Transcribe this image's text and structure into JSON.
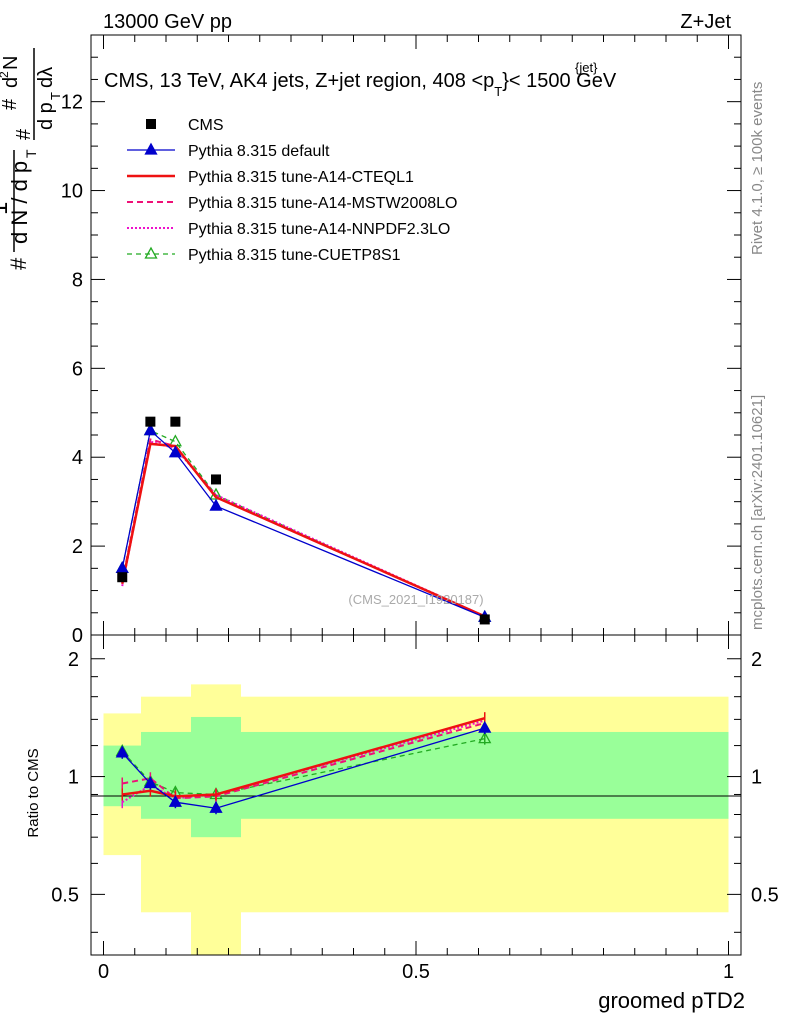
{
  "header": {
    "left": "13000 GeV pp",
    "right": "Z+Jet"
  },
  "side_labels": {
    "rivet": "Rivet 4.1.0, ≥ 100k events",
    "mcplots": "mcplots.cern.ch [arXiv:2401.10621]"
  },
  "watermark": "(CMS_2021_I1920187)",
  "colors": {
    "cms": "#000000",
    "default": "#0000cc",
    "cteql1": "#ee1111",
    "mstw": "#ee1177",
    "nnpdf": "#ee11cc",
    "cuetp": "#22aa22",
    "band_outer": "#ffff99",
    "band_inner": "#99ff99"
  },
  "chart_data": [
    {
      "type": "line",
      "panel": "main",
      "title": "CMS, 13 TeV, AK4 jets, Z+jet region, 408 <p_T^{jet}< 1500 GeV",
      "title_main": "CMS, 13 TeV, AK4 jets, Z+jet region, 408 <p",
      "title_sup": "{jet}",
      "title_sub": "T",
      "title_tail": "}< 1500 GeV",
      "ylabel": "1/(dN/dp_T) d²N/(dp_T dλ)",
      "xlim": [
        -0.02,
        1.02
      ],
      "ylim": [
        0,
        13.5
      ],
      "yticks": [
        0,
        2,
        4,
        6,
        8,
        10,
        12
      ],
      "ytick_labels": [
        "0",
        "2",
        "4",
        "6",
        "8",
        "10",
        "12"
      ],
      "legend_position": "top-left",
      "x": [
        0.03,
        0.075,
        0.115,
        0.18,
        0.61
      ],
      "series": [
        {
          "key": "cms",
          "name": "CMS",
          "values": [
            1.3,
            4.8,
            4.8,
            3.5,
            0.35
          ],
          "style": "marker-square"
        },
        {
          "key": "default",
          "name": "Pythia 8.315 default",
          "values": [
            1.5,
            4.6,
            4.1,
            2.9,
            0.4
          ],
          "style": "solid-triangle"
        },
        {
          "key": "cteql1",
          "name": "Pythia 8.315 tune-A14-CTEQL1",
          "values": [
            1.15,
            4.3,
            4.25,
            3.1,
            0.42
          ],
          "style": "solid"
        },
        {
          "key": "mstw",
          "name": "Pythia 8.315 tune-A14-MSTW2008LO",
          "values": [
            1.2,
            4.4,
            4.25,
            3.1,
            0.42
          ],
          "style": "dashed"
        },
        {
          "key": "nnpdf",
          "name": "Pythia 8.315 tune-A14-NNPDF2.3LO",
          "values": [
            1.1,
            4.35,
            4.2,
            3.15,
            0.42
          ],
          "style": "dotted"
        },
        {
          "key": "cuetp",
          "name": "Pythia 8.315 tune-CUETP8S1",
          "values": [
            1.5,
            4.6,
            4.35,
            3.15,
            0.4
          ],
          "style": "dashed-open-triangle"
        }
      ]
    },
    {
      "type": "line",
      "panel": "ratio",
      "ylabel": "Ratio to CMS",
      "xlabel": "groomed pTD2",
      "xlim": [
        -0.02,
        1.02
      ],
      "xticks": [
        0,
        0.5,
        1
      ],
      "xtick_labels": [
        "0",
        "0.5",
        "1"
      ],
      "ylim": [
        0.35,
        2.3
      ],
      "yticks": [
        0.5,
        1,
        2
      ],
      "ytick_labels": [
        "0.5",
        "1",
        "2"
      ],
      "bands": [
        {
          "x0": 0.0,
          "x1": 0.06,
          "outer": [
            0.63,
            1.45
          ],
          "inner": [
            0.84,
            1.2
          ]
        },
        {
          "x0": 0.06,
          "x1": 0.14,
          "outer": [
            0.45,
            1.6
          ],
          "inner": [
            0.78,
            1.3
          ]
        },
        {
          "x0": 0.14,
          "x1": 0.22,
          "outer": [
            0.35,
            1.72
          ],
          "inner": [
            0.7,
            1.42
          ]
        },
        {
          "x0": 0.22,
          "x1": 1.0,
          "outer": [
            0.45,
            1.6
          ],
          "inner": [
            0.78,
            1.3
          ]
        }
      ],
      "x": [
        0.03,
        0.075,
        0.115,
        0.18,
        0.61
      ],
      "series": [
        {
          "key": "default",
          "name": "Pythia 8.315 default",
          "values": [
            1.15,
            0.96,
            0.86,
            0.83,
            1.33
          ]
        },
        {
          "key": "cteql1",
          "name": "Pythia 8.315 tune-A14-CTEQL1",
          "values": [
            0.9,
            0.92,
            0.89,
            0.9,
            1.41
          ]
        },
        {
          "key": "mstw",
          "name": "Pythia 8.315 tune-A14-MSTW2008LO",
          "values": [
            0.96,
            0.99,
            0.88,
            0.89,
            1.37
          ]
        },
        {
          "key": "nnpdf",
          "name": "Pythia 8.315 tune-A14-NNPDF2.3LO",
          "values": [
            0.86,
            0.95,
            0.88,
            0.9,
            1.39
          ]
        },
        {
          "key": "cuetp",
          "name": "Pythia 8.315 tune-CUETP8S1",
          "values": [
            1.16,
            0.97,
            0.91,
            0.9,
            1.25
          ]
        }
      ]
    }
  ]
}
